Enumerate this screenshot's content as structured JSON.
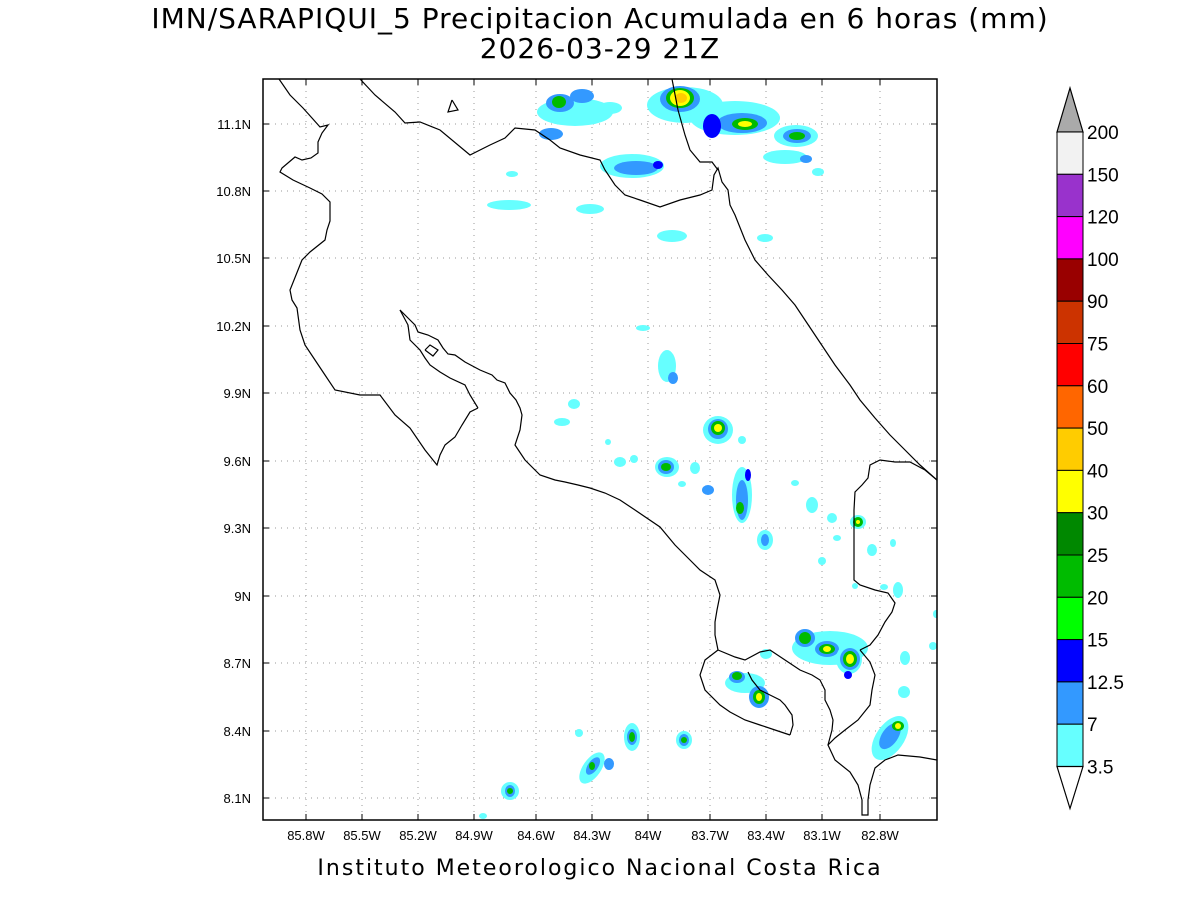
{
  "title": {
    "line1": "IMN/SARAPIQUI_5 Precipitacion Acumulada en 6 horas (mm)",
    "line2": "2026-03-29 21Z"
  },
  "footer": "Instituto Meteorologico Nacional Costa Rica",
  "axes": {
    "lon_ticks": [
      "85.8W",
      "85.5W",
      "85.2W",
      "84.9W",
      "84.6W",
      "84.3W",
      "84W",
      "83.7W",
      "83.4W",
      "83.1W",
      "82.8W"
    ],
    "lat_ticks": [
      "11.1N",
      "10.8N",
      "10.5N",
      "10.2N",
      "9.9N",
      "9.6N",
      "9.3N",
      "9N",
      "8.7N",
      "8.4N",
      "8.1N"
    ],
    "grid": true
  },
  "colorbar": {
    "levels": [
      "200",
      "150",
      "120",
      "100",
      "90",
      "75",
      "60",
      "50",
      "40",
      "30",
      "25",
      "20",
      "15",
      "12.5",
      "7",
      "3.5"
    ],
    "colors": [
      "#ffffff",
      "#f2f2f2",
      "#9932cc",
      "#ff00ff",
      "#990000",
      "#cc3300",
      "#ff0000",
      "#ff6600",
      "#ffcc00",
      "#ffff00",
      "#008800",
      "#00bb00",
      "#00ff00",
      "#0000ff",
      "#3399ff",
      "#66ffff"
    ],
    "over_color": "#aaaaaa",
    "under_color": "#ffffff"
  },
  "coast_color": "#000000",
  "grid_color": "#999999"
}
